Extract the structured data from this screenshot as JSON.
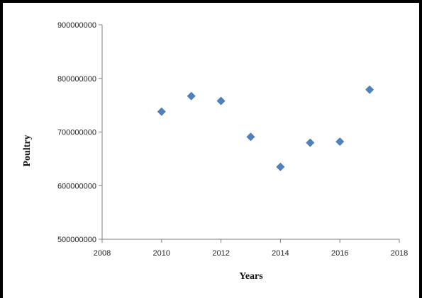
{
  "chart_data": {
    "type": "scatter",
    "title": "",
    "xlabel": "Years",
    "ylabel": "Poultry",
    "xlim": [
      2008,
      2018
    ],
    "ylim": [
      500000000,
      900000000
    ],
    "x_ticks": [
      2008,
      2010,
      2012,
      2014,
      2016,
      2018
    ],
    "y_ticks": [
      500000000,
      600000000,
      700000000,
      800000000,
      900000000
    ],
    "x_tick_labels": [
      "2008",
      "2010",
      "2012",
      "2014",
      "2016",
      "2018"
    ],
    "y_tick_labels": [
      "500000000",
      "600000000",
      "700000000",
      "800000000",
      "900000000"
    ],
    "grid": false,
    "legend": false,
    "marker": "diamond",
    "marker_color": "#4f81bd",
    "points": [
      {
        "x": 2010,
        "y": 738000000
      },
      {
        "x": 2011,
        "y": 767000000
      },
      {
        "x": 2012,
        "y": 758000000
      },
      {
        "x": 2013,
        "y": 691000000
      },
      {
        "x": 2014,
        "y": 635000000
      },
      {
        "x": 2015,
        "y": 680000000
      },
      {
        "x": 2016,
        "y": 682000000
      },
      {
        "x": 2017,
        "y": 779000000
      }
    ]
  }
}
